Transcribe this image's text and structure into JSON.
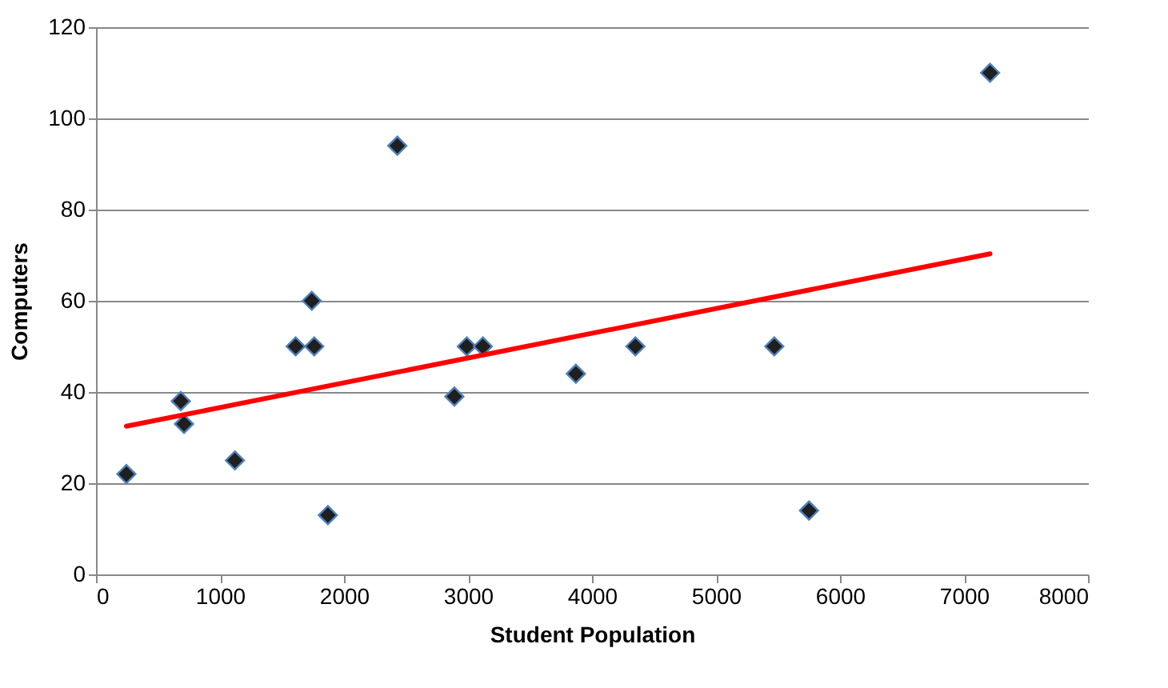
{
  "chart_data": {
    "type": "scatter",
    "xlabel": "Student Population",
    "ylabel": "Computers",
    "xlim": [
      0,
      8000
    ],
    "xticks": [
      0,
      1000,
      2000,
      3000,
      4000,
      5000,
      6000,
      7000,
      8000
    ],
    "ylim": [
      0,
      120
    ],
    "yticks": [
      0,
      20,
      40,
      60,
      80,
      100,
      120
    ],
    "grid": "y",
    "marker": "diamond",
    "series": [
      {
        "color": "#1f1f1f",
        "x": [
          245,
          684,
          710,
          1120,
          1610,
          1740,
          1760,
          1870,
          2430,
          2890,
          2990,
          3120,
          3870,
          4350,
          5470,
          5750,
          7210
        ],
        "values": [
          22,
          38,
          33,
          25,
          50,
          60,
          50,
          13,
          94,
          39,
          50,
          50,
          44,
          50,
          50,
          14,
          110
        ]
      },
      {
        "type": "line",
        "marker": "none",
        "color": "#ff0000",
        "x": [
          245,
          7210
        ],
        "values": [
          32.5,
          70.3
        ]
      }
    ]
  }
}
